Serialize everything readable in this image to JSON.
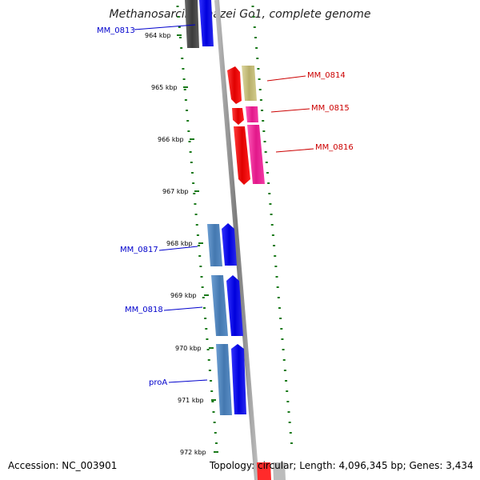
{
  "title": "Methanosarcina mazei Go1, complete genome",
  "footer": {
    "accession": "Accession: NC_003901",
    "topology": "Topology: circular; Length: 4,096,345 bp; Genes: 3,434"
  },
  "ticks": [
    "964 kbp",
    "965 kbp",
    "966 kbp",
    "967 kbp",
    "968 kbp",
    "969 kbp",
    "970 kbp",
    "971 kbp",
    "972 kbp"
  ],
  "genes": [
    {
      "name": "MM_0813",
      "strand": "reverse",
      "color": "#0000cc"
    },
    {
      "name": "MM_0814",
      "strand": "forward",
      "color": "#cc0000"
    },
    {
      "name": "MM_0815",
      "strand": "forward",
      "color": "#cc0000"
    },
    {
      "name": "MM_0816",
      "strand": "forward",
      "color": "#cc0000"
    },
    {
      "name": "MM_0817",
      "strand": "reverse",
      "color": "#0000cc"
    },
    {
      "name": "MM_0818",
      "strand": "reverse",
      "color": "#0000cc"
    },
    {
      "name": "proA",
      "strand": "reverse",
      "color": "#0000cc"
    }
  ],
  "colors": {
    "backbone": "#8a8a8a",
    "tick": "#1a7a1a",
    "forward_gene": "#ff0000",
    "forward_cds": "#ee2299",
    "forward_olive": "#c8c080",
    "reverse_gene": "#0000ff",
    "reverse_cds": "#4f86c0"
  }
}
